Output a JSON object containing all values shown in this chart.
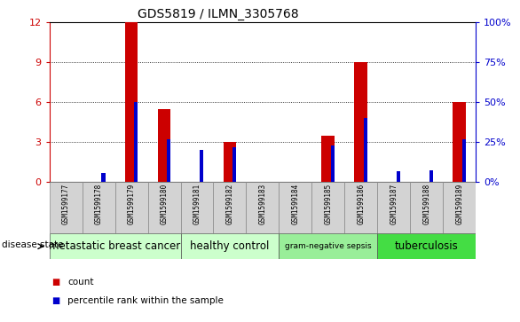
{
  "title": "GDS5819 / ILMN_3305768",
  "samples": [
    "GSM1599177",
    "GSM1599178",
    "GSM1599179",
    "GSM1599180",
    "GSM1599181",
    "GSM1599182",
    "GSM1599183",
    "GSM1599184",
    "GSM1599185",
    "GSM1599186",
    "GSM1599187",
    "GSM1599188",
    "GSM1599189"
  ],
  "count_values": [
    0,
    0,
    12,
    5.5,
    0,
    3.0,
    0,
    0,
    3.5,
    9.0,
    0,
    0,
    6.0
  ],
  "percentile_values": [
    0,
    5.5,
    50,
    27,
    20,
    22,
    0,
    0,
    23,
    40,
    7,
    7.5,
    27
  ],
  "disease_groups": [
    {
      "label": "metastatic breast cancer",
      "start": 0,
      "end": 4,
      "color": "#ccffcc"
    },
    {
      "label": "healthy control",
      "start": 4,
      "end": 7,
      "color": "#ccffcc"
    },
    {
      "label": "gram-negative sepsis",
      "start": 7,
      "end": 10,
      "color": "#99ee99"
    },
    {
      "label": "tuberculosis",
      "start": 10,
      "end": 13,
      "color": "#44dd44"
    }
  ],
  "ylim_left": [
    0,
    12
  ],
  "ylim_right": [
    0,
    100
  ],
  "yticks_left": [
    0,
    3,
    6,
    9,
    12
  ],
  "yticks_right": [
    0,
    25,
    50,
    75,
    100
  ],
  "red_bar_width": 0.4,
  "blue_bar_width": 0.12,
  "count_color": "#cc0000",
  "percentile_color": "#0000cc",
  "disease_label": "disease state",
  "group_fontsizes": [
    8.5,
    8.5,
    6.5,
    8.5
  ],
  "sample_bg_color": "#d3d3d3",
  "title_fontsize": 10,
  "tick_fontsize": 8
}
